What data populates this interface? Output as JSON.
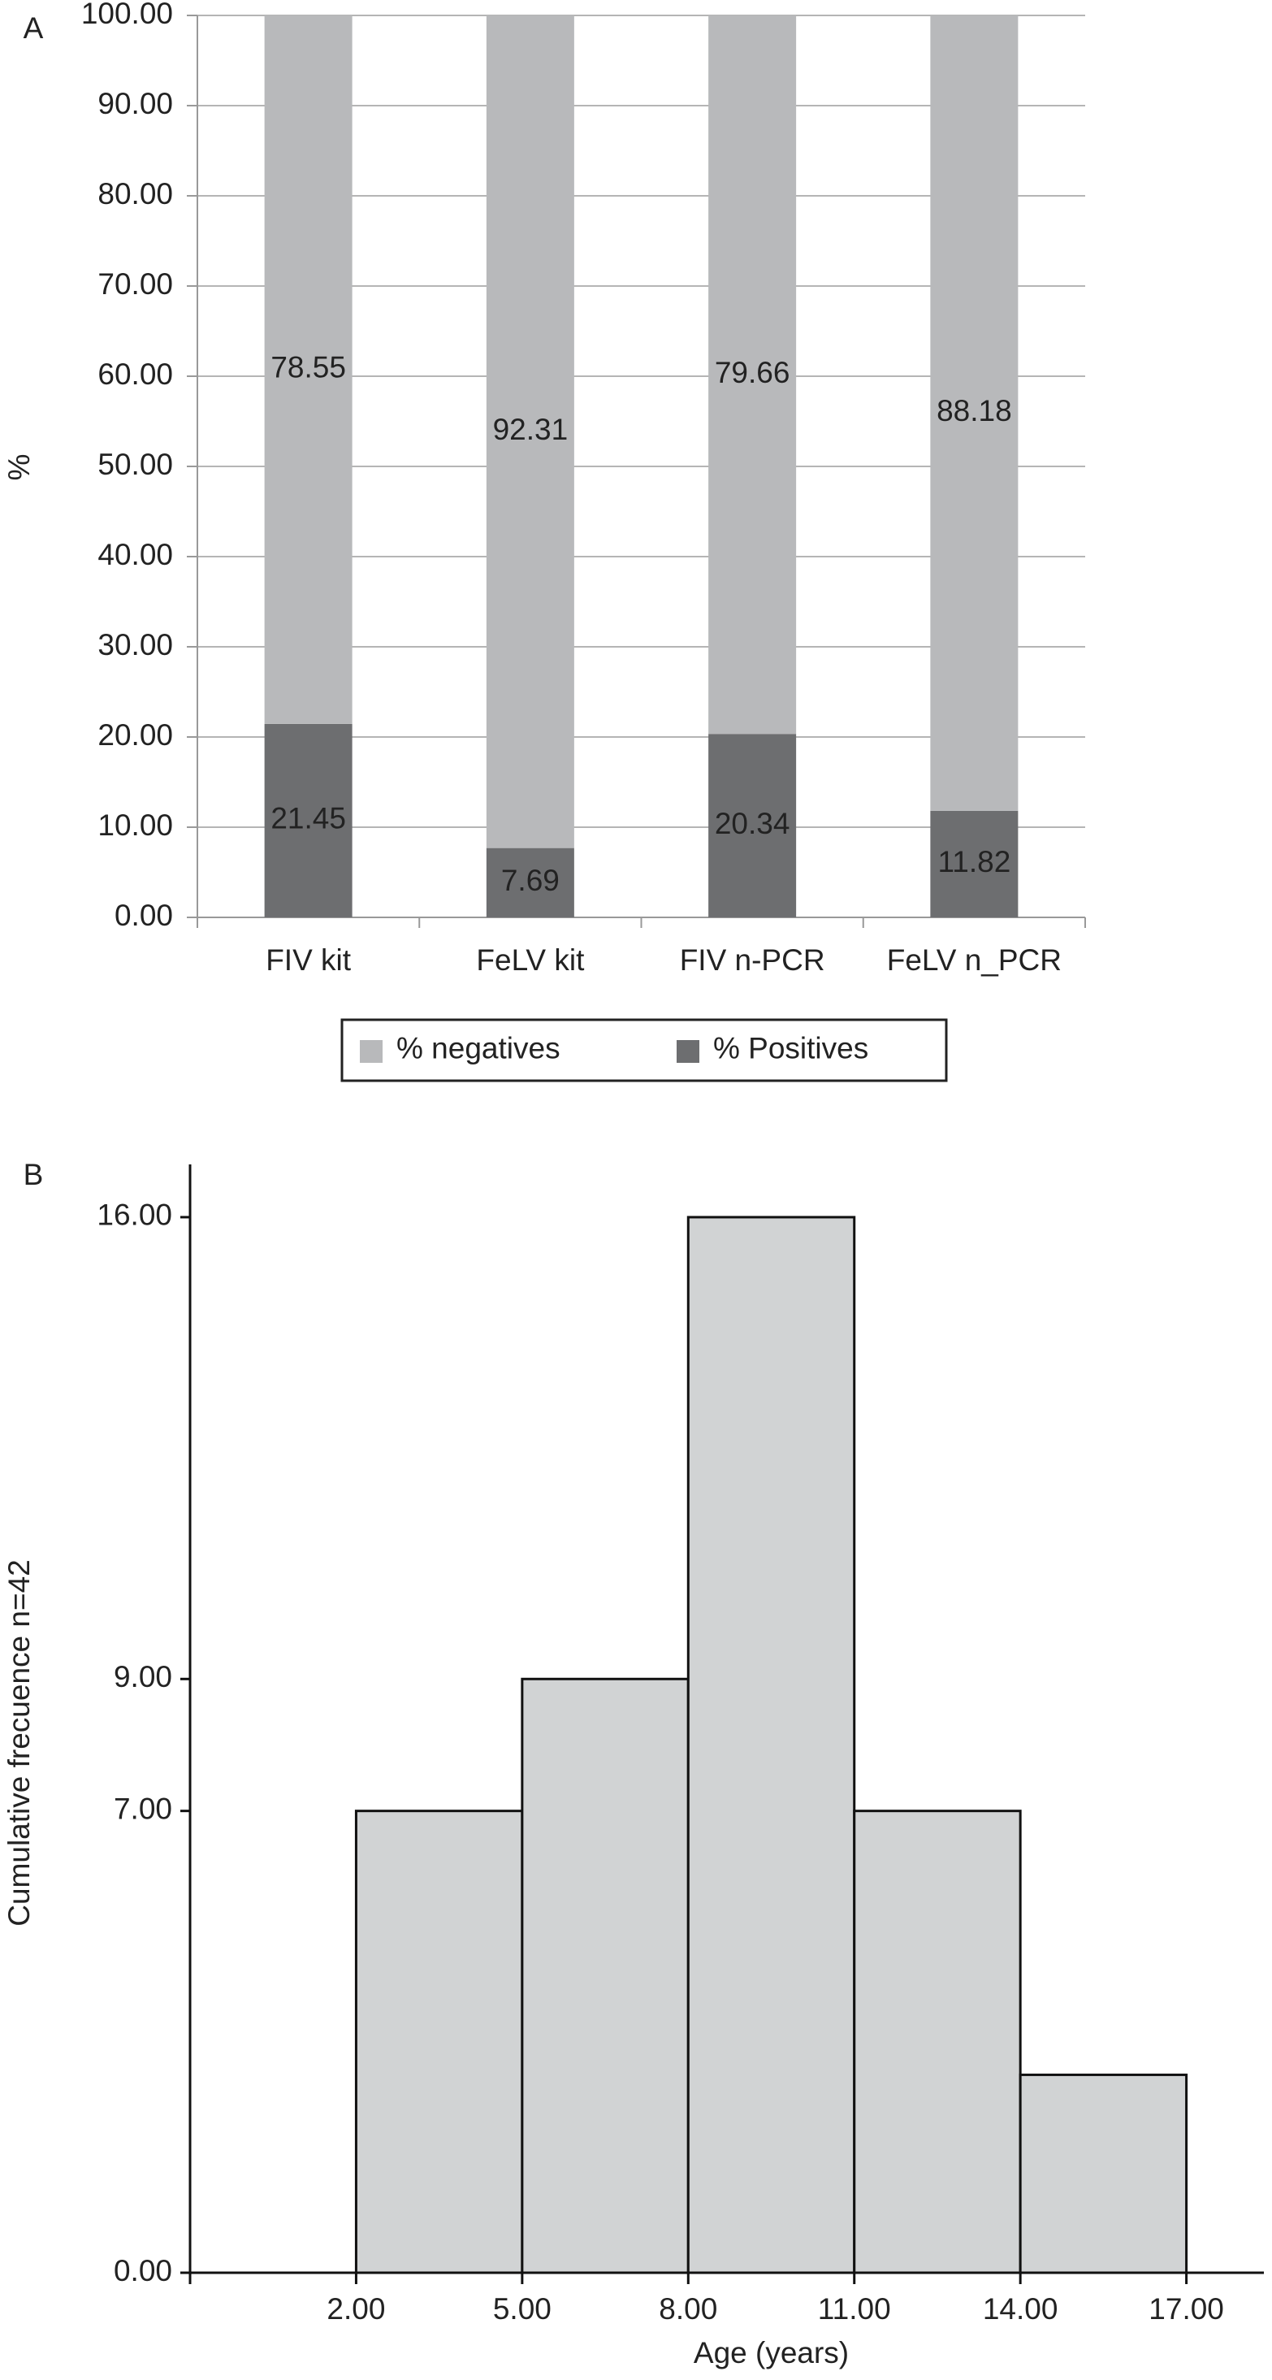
{
  "chart_data": [
    {
      "type": "bar",
      "stacked": true,
      "panel_label": "A",
      "y_label": "%",
      "categories": [
        "FIV kit",
        "FeLV kit",
        "FIV n-PCR",
        "FeLV n_PCR"
      ],
      "series": [
        {
          "name": "% Positives",
          "color": "#6d6e70",
          "values": [
            21.45,
            7.69,
            20.34,
            11.82
          ]
        },
        {
          "name": "% negatives",
          "color": "#b8b9bb",
          "values": [
            78.55,
            92.31,
            79.66,
            88.18
          ]
        }
      ],
      "ylim": [
        0,
        100
      ],
      "yticks": [
        {
          "value": 0,
          "label": "0.00"
        },
        {
          "value": 10,
          "label": "10.00"
        },
        {
          "value": 20,
          "label": "20.00"
        },
        {
          "value": 30,
          "label": "30.00"
        },
        {
          "value": 40,
          "label": "40.00"
        },
        {
          "value": 50,
          "label": "50.00"
        },
        {
          "value": 60,
          "label": "60.00"
        },
        {
          "value": 70,
          "label": "70.00"
        },
        {
          "value": 80,
          "label": "80.00"
        },
        {
          "value": 90,
          "label": "90.00"
        },
        {
          "value": 100,
          "label": "100.00"
        }
      ],
      "grid": true,
      "legend": "bottom"
    },
    {
      "type": "histogram",
      "panel_label": "B",
      "x_label": "Age (years)",
      "y_label": "Cumulative frecuence n=42",
      "bins": [
        2,
        5,
        8,
        11,
        14,
        17
      ],
      "values": [
        7,
        9,
        16,
        7,
        3
      ],
      "color": "#d1d3d4",
      "xlim": [
        -1,
        18.4
      ],
      "ylim": [
        0,
        16.8
      ],
      "xticks": [
        {
          "value": 2,
          "label": "2.00"
        },
        {
          "value": 5,
          "label": "5.00"
        },
        {
          "value": 8,
          "label": "8.00"
        },
        {
          "value": 11,
          "label": "11.00"
        },
        {
          "value": 14,
          "label": "14.00"
        },
        {
          "value": 17,
          "label": "17.00"
        }
      ],
      "yticks": [
        {
          "value": 0,
          "label": "0.00"
        },
        {
          "value": 7,
          "label": "7.00"
        },
        {
          "value": 9,
          "label": "9.00"
        },
        {
          "value": 16,
          "label": "16.00"
        }
      ],
      "grid": false
    }
  ]
}
